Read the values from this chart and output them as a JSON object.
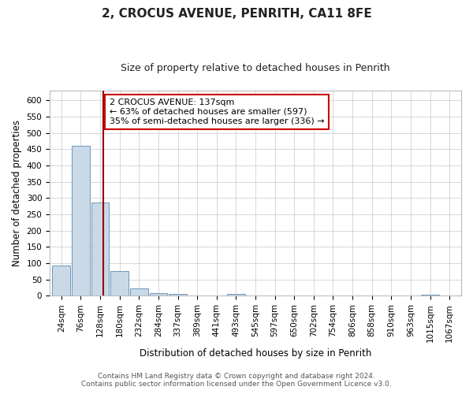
{
  "title1": "2, CROCUS AVENUE, PENRITH, CA11 8FE",
  "title2": "Size of property relative to detached houses in Penrith",
  "xlabel": "Distribution of detached houses by size in Penrith",
  "ylabel": "Number of detached properties",
  "categories": [
    "24sqm",
    "76sqm",
    "128sqm",
    "180sqm",
    "232sqm",
    "284sqm",
    "337sqm",
    "389sqm",
    "441sqm",
    "493sqm",
    "545sqm",
    "597sqm",
    "650sqm",
    "702sqm",
    "754sqm",
    "806sqm",
    "858sqm",
    "910sqm",
    "963sqm",
    "1015sqm",
    "1067sqm"
  ],
  "values": [
    93,
    460,
    287,
    75,
    22,
    9,
    6,
    0,
    0,
    5,
    0,
    0,
    0,
    0,
    0,
    0,
    0,
    0,
    0,
    4,
    0
  ],
  "bar_color": "#c9d9e8",
  "bar_edge_color": "#5a8ab0",
  "property_line_color": "#990000",
  "annotation_text": "2 CROCUS AVENUE: 137sqm\n← 63% of detached houses are smaller (597)\n35% of semi-detached houses are larger (336) →",
  "annotation_box_color": "#ffffff",
  "annotation_box_edge_color": "#cc0000",
  "ylim": [
    0,
    630
  ],
  "yticks": [
    0,
    50,
    100,
    150,
    200,
    250,
    300,
    350,
    400,
    450,
    500,
    550,
    600
  ],
  "footer1": "Contains HM Land Registry data © Crown copyright and database right 2024.",
  "footer2": "Contains public sector information licensed under the Open Government Licence v3.0.",
  "title1_fontsize": 11,
  "title2_fontsize": 9,
  "xlabel_fontsize": 8.5,
  "ylabel_fontsize": 8.5,
  "annotation_fontsize": 8,
  "tick_fontsize": 7.5,
  "footer_fontsize": 6.5
}
